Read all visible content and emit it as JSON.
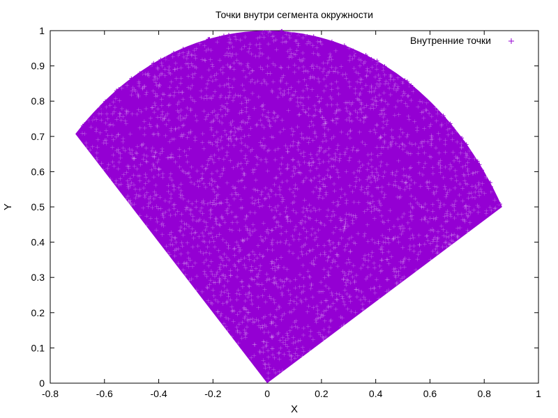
{
  "chart_data": {
    "type": "scatter",
    "title": "Точки внутри сегмента окружности",
    "xlabel": "X",
    "ylabel": "Y",
    "xlim": [
      -0.8,
      1
    ],
    "ylim": [
      0,
      1
    ],
    "xticks": [
      "-0.8",
      "-0.6",
      "-0.4",
      "-0.2",
      "0",
      "0.2",
      "0.4",
      "0.6",
      "0.8",
      "1"
    ],
    "yticks": [
      "0",
      "0.1",
      "0.2",
      "0.3",
      "0.4",
      "0.5",
      "0.6",
      "0.7",
      "0.8",
      "0.9",
      "1"
    ],
    "grid": false,
    "legend_position": "top-right",
    "marker": "+",
    "series": [
      {
        "name": "Внутренние точки",
        "color": "#9400d3",
        "region": {
          "shape": "circle-sector",
          "center": [
            0,
            0
          ],
          "radius": 1,
          "angle_start_deg": 30,
          "angle_end_deg": 135
        }
      }
    ]
  }
}
